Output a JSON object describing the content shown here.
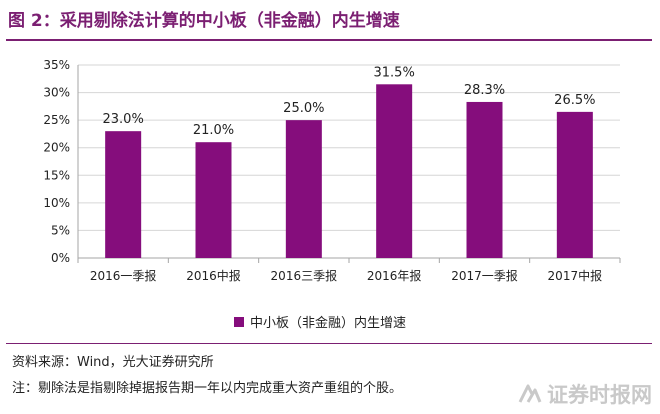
{
  "title": "图 2：采用剔除法计算的中小板（非金融）内生增速",
  "source": "资料来源：Wind，光大证券研究所",
  "note": "注：剔除法是指剔除掉据报告期一年以内完成重大资产重组的个股。",
  "watermark": "证券时报网",
  "colors": {
    "bar": "#850d7c",
    "title": "#7b1f72",
    "grid": "#d6d6d6",
    "axis": "#a6a6a6"
  },
  "chart_data": {
    "type": "bar",
    "title": "",
    "xlabel": "",
    "ylabel": "",
    "categories": [
      "2016一季报",
      "2016中报",
      "2016三季报",
      "2016年报",
      "2017一季报",
      "2017中报"
    ],
    "series": [
      {
        "name": "中小板（非金融）内生增速",
        "values": [
          23.0,
          21.0,
          25.0,
          31.5,
          28.3,
          26.5
        ]
      }
    ],
    "data_labels": [
      "23.0%",
      "21.0%",
      "25.0%",
      "31.5%",
      "28.3%",
      "26.5%"
    ],
    "ylim": [
      0,
      35
    ],
    "yticks": [
      0,
      5,
      10,
      15,
      20,
      25,
      30,
      35
    ],
    "ytick_labels": [
      "0%",
      "5%",
      "10%",
      "15%",
      "20%",
      "25%",
      "30%",
      "35%"
    ],
    "grid": true,
    "legend_position": "bottom-center"
  }
}
